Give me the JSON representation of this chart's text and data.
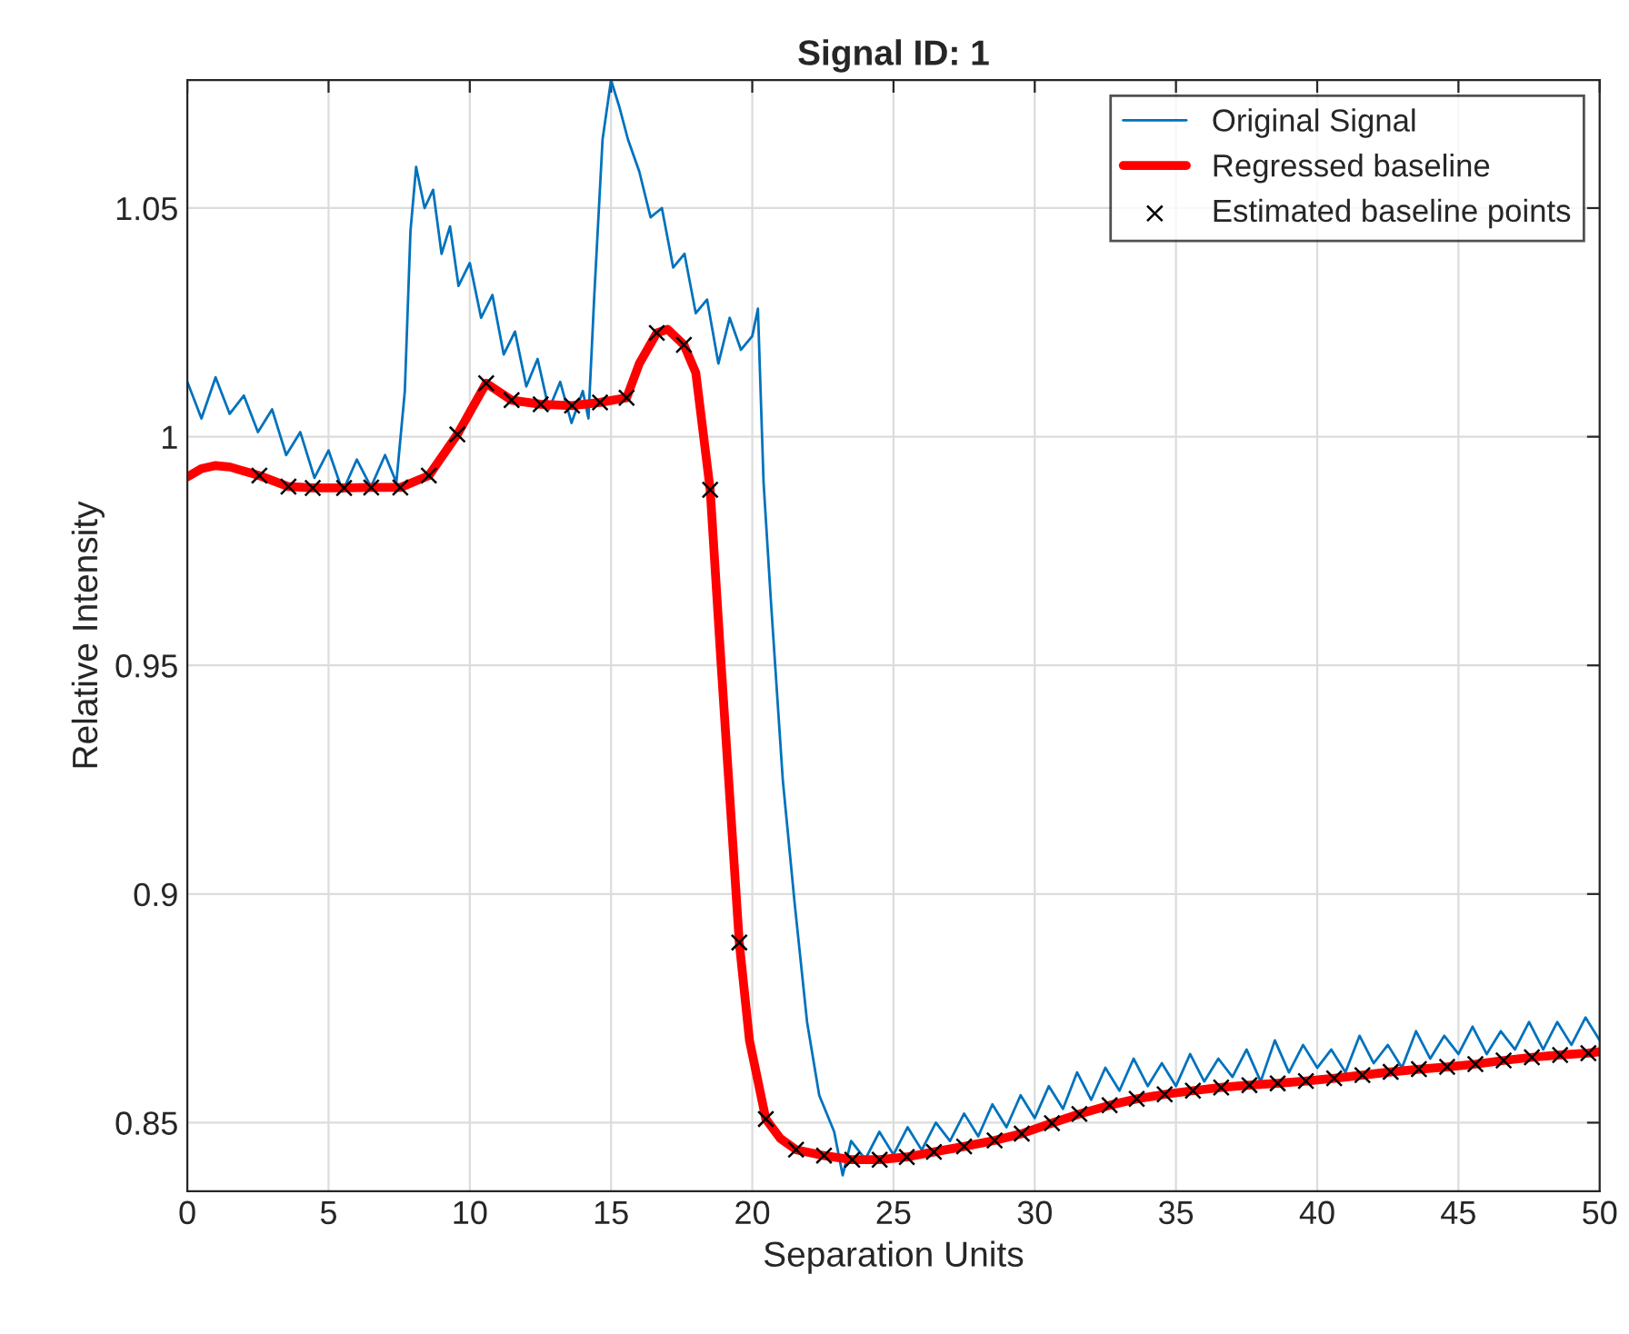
{
  "chart_data": {
    "type": "line",
    "title": "Signal ID: 1",
    "xlabel": "Separation Units",
    "ylabel": "Relative Intensity",
    "xlim": [
      0,
      50
    ],
    "ylim": [
      0.835,
      1.078
    ],
    "xticks": [
      0,
      5,
      10,
      15,
      20,
      25,
      30,
      35,
      40,
      45,
      50
    ],
    "yticks": [
      0.85,
      0.9,
      0.95,
      1,
      1.05
    ],
    "grid": true,
    "legend": "top right",
    "series": [
      {
        "name": "Original Signal",
        "color": "#0072bd",
        "line_style": "solid",
        "marker": "none",
        "x": [
          0,
          0.5,
          1,
          1.5,
          2,
          2.5,
          3,
          3.5,
          4,
          4.5,
          5,
          5.5,
          6,
          6.5,
          7,
          7.4,
          7.7,
          7.9,
          8.1,
          8.4,
          8.7,
          9,
          9.3,
          9.6,
          10,
          10.4,
          10.8,
          11.2,
          11.6,
          12,
          12.4,
          12.8,
          13.2,
          13.6,
          14,
          14.2,
          14.4,
          14.7,
          15,
          15.3,
          15.6,
          16,
          16.4,
          16.8,
          17.2,
          17.6,
          18,
          18.4,
          18.8,
          19.2,
          19.6,
          20,
          20.2,
          20.4,
          20.65,
          21.08,
          21.5,
          21.94,
          22.37,
          22.9,
          23.2,
          23.5,
          24,
          24.5,
          25,
          25.5,
          26,
          26.5,
          27,
          27.5,
          28,
          28.5,
          29,
          29.5,
          30,
          30.5,
          31,
          31.5,
          32,
          32.5,
          33,
          33.5,
          34,
          34.5,
          35,
          35.5,
          36,
          36.5,
          37,
          37.5,
          38,
          38.5,
          39,
          39.5,
          40,
          40.5,
          41,
          41.5,
          42,
          42.5,
          43,
          43.5,
          44,
          44.5,
          45,
          45.5,
          46,
          46.5,
          47,
          47.5,
          48,
          48.5,
          49,
          49.5,
          50
        ],
        "values": [
          1.012,
          1.004,
          1.013,
          1.005,
          1.009,
          1.001,
          1.006,
          0.996,
          1.001,
          0.991,
          0.997,
          0.988,
          0.995,
          0.989,
          0.996,
          0.99,
          1.01,
          1.045,
          1.059,
          1.05,
          1.054,
          1.04,
          1.046,
          1.033,
          1.038,
          1.026,
          1.031,
          1.018,
          1.023,
          1.011,
          1.017,
          1.006,
          1.012,
          1.003,
          1.01,
          1.004,
          1.03,
          1.065,
          1.078,
          1.072,
          1.065,
          1.058,
          1.048,
          1.05,
          1.037,
          1.04,
          1.027,
          1.03,
          1.016,
          1.026,
          1.019,
          1.022,
          1.028,
          0.99,
          0.965,
          0.925,
          0.898,
          0.872,
          0.856,
          0.848,
          0.8385,
          0.846,
          0.842,
          0.848,
          0.843,
          0.849,
          0.844,
          0.85,
          0.846,
          0.852,
          0.847,
          0.854,
          0.849,
          0.856,
          0.851,
          0.858,
          0.853,
          0.861,
          0.855,
          0.862,
          0.857,
          0.864,
          0.858,
          0.863,
          0.858,
          0.865,
          0.859,
          0.864,
          0.86,
          0.866,
          0.859,
          0.868,
          0.861,
          0.867,
          0.862,
          0.866,
          0.861,
          0.869,
          0.863,
          0.867,
          0.862,
          0.87,
          0.864,
          0.869,
          0.865,
          0.871,
          0.865,
          0.87,
          0.866,
          0.872,
          0.866,
          0.872,
          0.867,
          0.873,
          0.868
        ]
      },
      {
        "name": "Regressed baseline",
        "color": "#ff0000",
        "line_style": "solid",
        "marker": "none",
        "x": [
          0,
          0.5,
          1,
          1.5,
          2,
          2.55,
          3.58,
          4.44,
          5.55,
          6.51,
          7.54,
          8.55,
          9.56,
          10.58,
          11.48,
          12.51,
          13.62,
          14.61,
          15.55,
          16.0,
          16.62,
          17.0,
          17.58,
          18.0,
          18.51,
          18.9,
          19.54,
          19.9,
          20.48,
          21.0,
          21.55,
          22.54,
          23.54,
          24.51,
          25.47,
          26.43,
          27.5,
          28.58,
          29.54,
          30.61,
          31.58,
          32.65,
          33.61,
          34.6,
          35.6,
          36.6,
          37.6,
          38.6,
          39.6,
          40.6,
          41.6,
          42.6,
          43.6,
          44.6,
          45.6,
          46.6,
          47.6,
          48.6,
          49.6,
          50
        ],
        "values": [
          0.9912,
          0.993,
          0.9937,
          0.9934,
          0.9925,
          0.9915,
          0.9891,
          0.9888,
          0.9888,
          0.9889,
          0.9889,
          0.9915,
          1.0005,
          1.0117,
          1.008,
          1.0071,
          1.0068,
          1.0075,
          1.0085,
          1.016,
          1.0227,
          1.0235,
          1.0201,
          1.014,
          0.9884,
          0.95,
          0.8894,
          0.868,
          0.8508,
          0.8465,
          0.8441,
          0.8428,
          0.8419,
          0.8419,
          0.8425,
          0.8436,
          0.8448,
          0.8461,
          0.8476,
          0.8499,
          0.8519,
          0.8538,
          0.8552,
          0.8562,
          0.857,
          0.8577,
          0.8582,
          0.8586,
          0.8591,
          0.8597,
          0.8604,
          0.8611,
          0.8617,
          0.8622,
          0.8628,
          0.8636,
          0.8643,
          0.8648,
          0.8652,
          0.8655
        ]
      },
      {
        "name": "Estimated baseline points",
        "type": "scatter",
        "color": "#000000",
        "marker": "cross",
        "x": [
          2.55,
          3.58,
          4.44,
          5.55,
          6.51,
          7.54,
          8.55,
          9.56,
          10.58,
          11.48,
          12.51,
          13.62,
          14.61,
          15.55,
          16.62,
          17.58,
          18.51,
          19.54,
          20.48,
          21.55,
          22.54,
          23.54,
          24.51,
          25.47,
          26.43,
          27.5,
          28.58,
          29.54,
          30.61,
          31.58,
          32.65,
          33.61,
          34.6,
          35.6,
          36.6,
          37.6,
          38.6,
          39.6,
          40.6,
          41.6,
          42.6,
          43.6,
          44.6,
          45.6,
          46.6,
          47.6,
          48.6,
          49.6
        ],
        "values": [
          0.9915,
          0.9891,
          0.9888,
          0.9888,
          0.9889,
          0.9889,
          0.9915,
          1.0005,
          1.0117,
          1.008,
          1.0071,
          1.0068,
          1.0075,
          1.0085,
          1.0227,
          1.0201,
          0.9884,
          0.8894,
          0.8508,
          0.8441,
          0.8428,
          0.8419,
          0.8419,
          0.8425,
          0.8436,
          0.8448,
          0.8461,
          0.8476,
          0.8499,
          0.8519,
          0.8538,
          0.8552,
          0.8562,
          0.857,
          0.8577,
          0.8582,
          0.8586,
          0.8591,
          0.8597,
          0.8604,
          0.8611,
          0.8617,
          0.8622,
          0.8628,
          0.8636,
          0.8643,
          0.8648,
          0.8652
        ]
      }
    ]
  }
}
